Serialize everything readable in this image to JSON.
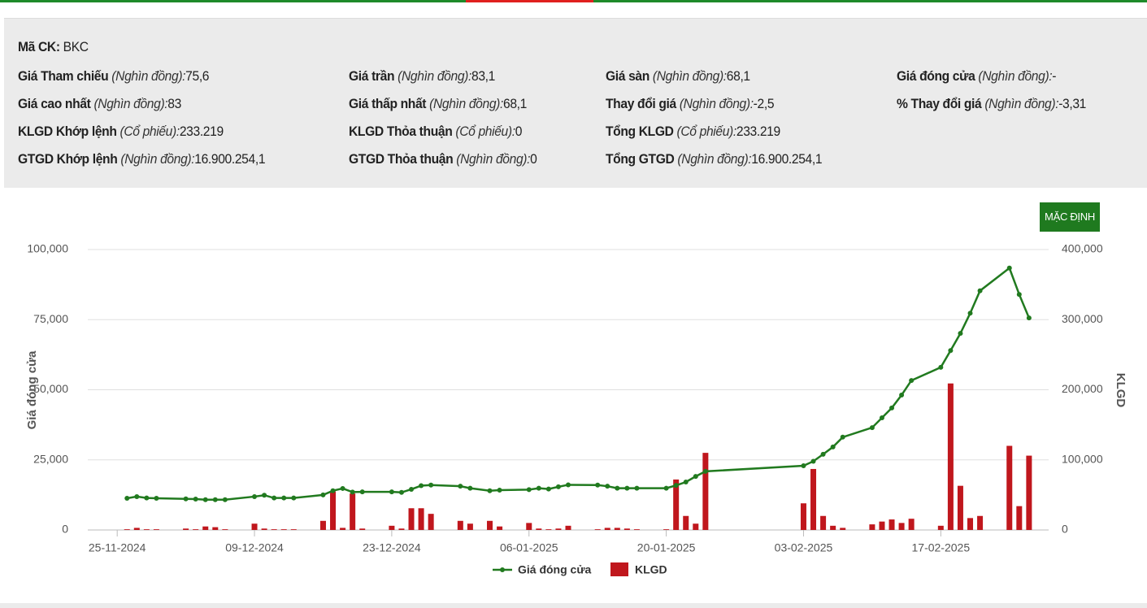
{
  "info": {
    "symbol_label": "Mã CK:",
    "symbol": "BKC",
    "rows": [
      [
        {
          "label": "Giá Tham chiếu",
          "unit": "(Nghìn đồng):",
          "value": "75,6"
        },
        {
          "label": "Giá trần",
          "unit": "(Nghìn đồng):",
          "value": "83,1"
        },
        {
          "label": "Giá sàn",
          "unit": "(Nghìn đồng):",
          "value": "68,1"
        },
        {
          "label": "Giá đóng cửa",
          "unit": "(Nghìn đồng):",
          "value": "-"
        }
      ],
      [
        {
          "label": "Giá cao nhất",
          "unit": "(Nghìn đồng):",
          "value": "83"
        },
        {
          "label": "Giá thấp nhất",
          "unit": "(Nghìn đồng):",
          "value": "68,1"
        },
        {
          "label": "Thay đổi giá",
          "unit": "(Nghìn đồng):",
          "value": "-2,5"
        },
        {
          "label": "% Thay đổi giá",
          "unit": "(Nghìn đồng):",
          "value": "-3,31"
        }
      ],
      [
        {
          "label": "KLGD Khớp lệnh",
          "unit": "(Cổ phiếu):",
          "value": "233.219"
        },
        {
          "label": "KLGD Thỏa thuận",
          "unit": "(Cổ phiếu):",
          "value": "0"
        },
        {
          "label": "Tổng KLGD",
          "unit": "(Cổ phiếu):",
          "value": "233.219"
        }
      ],
      [
        {
          "label": "GTGD Khớp lệnh",
          "unit": "(Nghìn đồng):",
          "value": "16.900.254,1"
        },
        {
          "label": "GTGD Thỏa thuận",
          "unit": "(Nghìn đồng):",
          "value": "0"
        },
        {
          "label": "Tổng GTGD",
          "unit": "(Nghìn đồng):",
          "value": "16.900.254,1"
        }
      ]
    ]
  },
  "button": "MẶC ĐỊNH",
  "chart_data": {
    "type": "line-bar",
    "ylabel": "Giá đóng cửa",
    "y2label": "KLGD",
    "x": [
      "26-11-2024",
      "27-11-2024",
      "28-11-2024",
      "29-11-2024",
      "02-12-2024",
      "03-12-2024",
      "04-12-2024",
      "05-12-2024",
      "06-12-2024",
      "09-12-2024",
      "10-12-2024",
      "11-12-2024",
      "12-12-2024",
      "13-12-2024",
      "16-12-2024",
      "17-12-2024",
      "18-12-2024",
      "19-12-2024",
      "20-12-2024",
      "23-12-2024",
      "24-12-2024",
      "25-12-2024",
      "26-12-2024",
      "27-12-2024",
      "30-12-2024",
      "31-12-2024",
      "02-01-2025",
      "03-01-2025",
      "06-01-2025",
      "07-01-2025",
      "08-01-2025",
      "09-01-2025",
      "10-01-2025",
      "13-01-2025",
      "14-01-2025",
      "15-01-2025",
      "16-01-2025",
      "17-01-2025",
      "20-01-2025",
      "21-01-2025",
      "22-01-2025",
      "23-01-2025",
      "24-01-2025",
      "03-02-2025",
      "04-02-2025",
      "05-02-2025",
      "06-02-2025",
      "07-02-2025",
      "10-02-2025",
      "11-02-2025",
      "12-02-2025",
      "13-02-2025",
      "14-02-2025",
      "17-02-2025",
      "18-02-2025",
      "19-02-2025",
      "20-02-2025",
      "21-02-2025",
      "24-02-2025",
      "25-02-2025",
      "26-02-2025"
    ],
    "series": [
      {
        "name": "Giá đóng cửa",
        "color": "#217a1f",
        "kind": "line",
        "values": [
          11300,
          11900,
          11400,
          11300,
          11100,
          11000,
          10800,
          10800,
          10800,
          11900,
          12400,
          11400,
          11400,
          11400,
          12500,
          14000,
          14800,
          13500,
          13600,
          13600,
          13400,
          14500,
          15800,
          16000,
          15600,
          14900,
          14000,
          14200,
          14400,
          14900,
          14600,
          15400,
          16100,
          16000,
          15600,
          14900,
          14900,
          14900,
          14900,
          15900,
          17100,
          19100,
          20900,
          22900,
          24500,
          27000,
          29600,
          33100,
          36500,
          40000,
          43500,
          48100,
          53300,
          58000,
          64000,
          70100,
          77300,
          85300,
          93400,
          84000,
          75600
        ]
      },
      {
        "name": "KLGD",
        "color": "#c0171d",
        "kind": "bar",
        "axis": "y2",
        "values": [
          1000,
          3000,
          1000,
          1000,
          2000,
          1000,
          5000,
          4000,
          1000,
          9000,
          2000,
          1000,
          1000,
          1000,
          13000,
          55000,
          3000,
          52000,
          2000,
          6000,
          2000,
          31000,
          31000,
          23000,
          13000,
          9000,
          13000,
          5000,
          10000,
          2000,
          1000,
          2000,
          6000,
          1000,
          3000,
          3000,
          2000,
          1000,
          1000,
          72000,
          20000,
          9000,
          110000,
          38000,
          87000,
          20000,
          6000,
          3000,
          8000,
          12000,
          15000,
          10000,
          16000,
          6000,
          209000,
          63000,
          17000,
          20000,
          120000,
          34000,
          106000
        ]
      }
    ],
    "xlim": [
      "22-11-2024",
      "28-02-2025"
    ],
    "xticks": [
      "25-11-2024",
      "09-12-2024",
      "23-12-2024",
      "06-01-2025",
      "20-01-2025",
      "03-02-2025",
      "17-02-2025"
    ],
    "ylim": [
      0,
      100000
    ],
    "yticks": [
      0,
      {
        "value": 25000,
        "label": "25,000"
      },
      {
        "value": 50000,
        "label": "50,000"
      },
      {
        "value": 75000,
        "label": "75,000"
      },
      {
        "value": 100000,
        "label": "100,000"
      }
    ],
    "y2lim": [
      0,
      400000
    ],
    "y2ticks": [
      0,
      {
        "value": 100000,
        "label": "100,000"
      },
      {
        "value": 200000,
        "label": "200,000"
      },
      {
        "value": 300000,
        "label": "300,000"
      },
      {
        "value": 400000,
        "label": "400,000"
      }
    ],
    "grid": true,
    "legend": "bottom"
  }
}
